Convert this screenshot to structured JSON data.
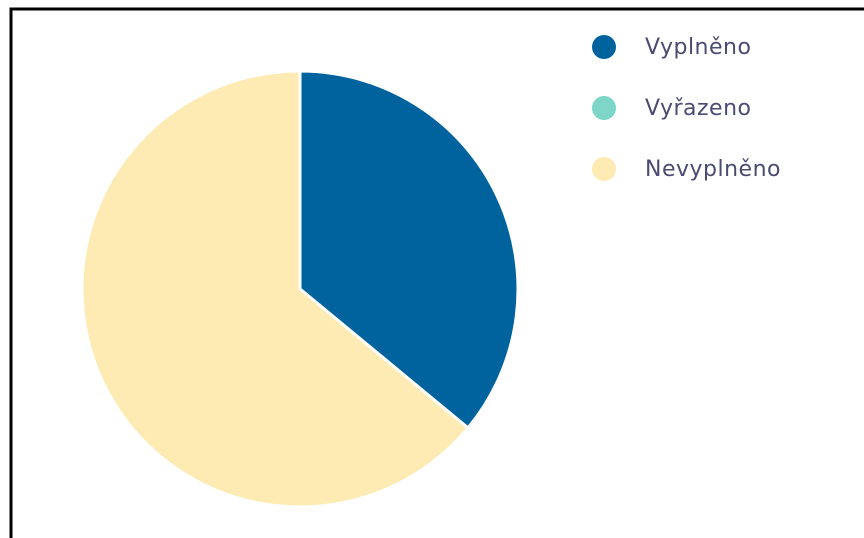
{
  "chart_data": {
    "type": "pie",
    "categories": [
      "Vyplněno",
      "Vyřazeno",
      "Nevyplněno"
    ],
    "values": [
      36,
      0,
      64
    ],
    "colors": [
      "#00639e",
      "#7dd6c8",
      "#fdebb3"
    ],
    "legend": "top-right"
  }
}
